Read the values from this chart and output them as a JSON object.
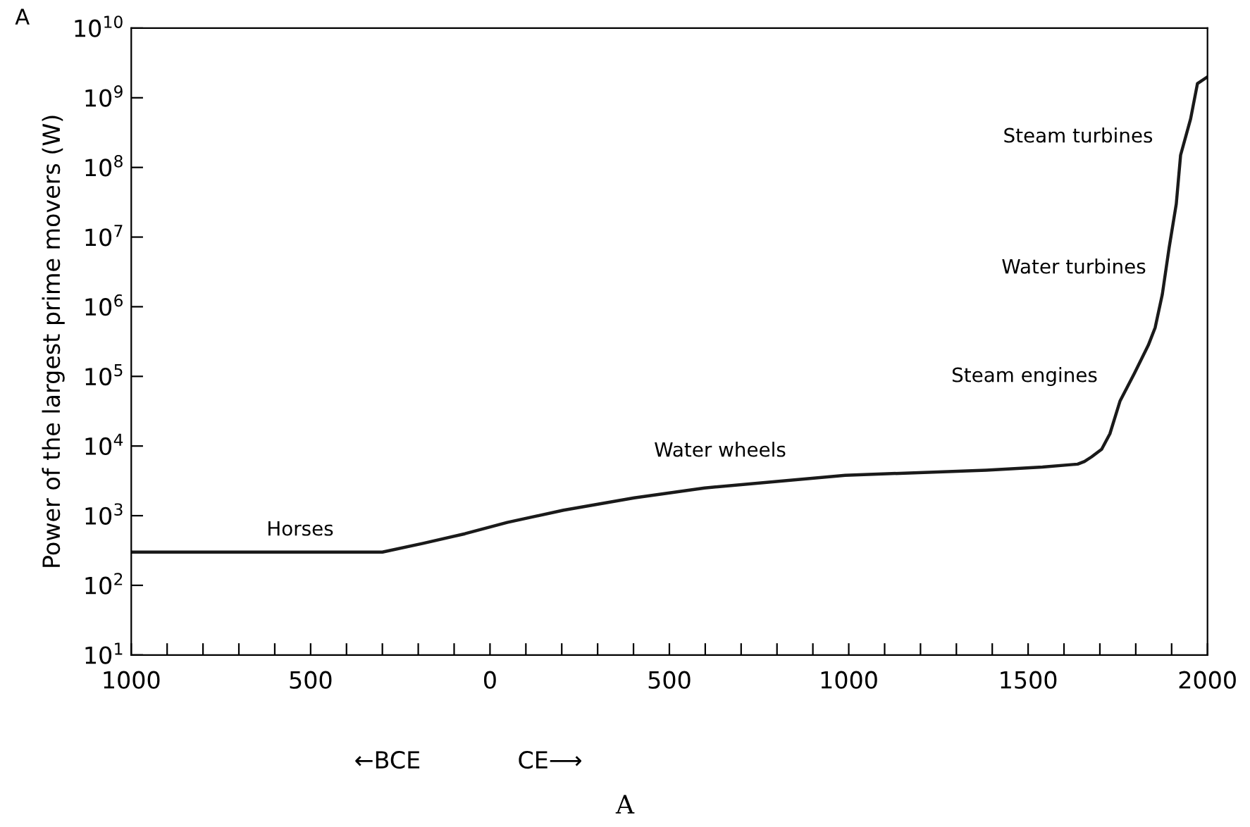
{
  "chart_data": {
    "type": "line",
    "ylabel": "Power of the largest prime movers (W)",
    "log": "y",
    "grid": false,
    "marker": "none",
    "line_style": "solid",
    "x": [
      -1000,
      -300,
      -187,
      -70,
      48,
      205,
      402,
      598,
      990,
      1383,
      1540,
      1638,
      1657,
      1677,
      1705,
      1728,
      1756,
      1796,
      1835,
      1854,
      1874,
      1893,
      1913,
      1925,
      1953,
      1972,
      2000
    ],
    "series": [
      {
        "color": "#1a1a1a",
        "values": [
          300,
          300,
          400,
          550,
          800,
          1200,
          1800,
          2500,
          3800,
          4500,
          5000,
          5500,
          6000,
          7000,
          9000,
          15000,
          44000,
          110000,
          280000,
          500000,
          1500000,
          7000000,
          30000000,
          150000000,
          500000000,
          1600000000,
          2000000000
        ]
      }
    ],
    "xlim": [
      -1000,
      2000
    ],
    "xticks": [
      {
        "value": -1000,
        "label": "1000"
      },
      {
        "value": -900,
        "label": null
      },
      {
        "value": -800,
        "label": null
      },
      {
        "value": -700,
        "label": null
      },
      {
        "value": -600,
        "label": null
      },
      {
        "value": -500,
        "label": "500"
      },
      {
        "value": -400,
        "label": null
      },
      {
        "value": -300,
        "label": null
      },
      {
        "value": -200,
        "label": null
      },
      {
        "value": -100,
        "label": null
      },
      0,
      {
        "value": 100,
        "label": null
      },
      {
        "value": 200,
        "label": null
      },
      {
        "value": 300,
        "label": null
      },
      {
        "value": 400,
        "label": null
      },
      500,
      {
        "value": 600,
        "label": null
      },
      {
        "value": 700,
        "label": null
      },
      {
        "value": 800,
        "label": null
      },
      {
        "value": 900,
        "label": null
      },
      1000,
      {
        "value": 1100,
        "label": null
      },
      {
        "value": 1200,
        "label": null
      },
      {
        "value": 1300,
        "label": null
      },
      {
        "value": 1400,
        "label": null
      },
      1500,
      {
        "value": 1600,
        "label": null
      },
      {
        "value": 1700,
        "label": null
      },
      {
        "value": 1800,
        "label": null
      },
      {
        "value": 1900,
        "label": null
      },
      2000
    ],
    "ylim": [
      10,
      10000000000
    ],
    "yticks": [
      {
        "value": 10,
        "label": "10$^{1}$"
      },
      {
        "value": 100,
        "label": "10$^{2}$"
      },
      {
        "value": 1000,
        "label": "10$^{3}$"
      },
      {
        "value": 10000,
        "label": "10$^{4}$"
      },
      {
        "value": 100000,
        "label": "10$^{5}$"
      },
      {
        "value": 1000000,
        "label": "10$^{6}$"
      },
      {
        "value": 10000000,
        "label": "10$^{7}$"
      },
      {
        "value": 100000000,
        "label": "10$^{8}$"
      },
      {
        "value": 1000000000,
        "label": "10$^{9}$"
      },
      {
        "value": 10000000000,
        "label": "10$^{10}$"
      }
    ],
    "annotations": [
      "Horses",
      "Water wheels",
      "Steam engines",
      "Water turbines",
      "Steam turbines",
      "←BCE",
      "CE⟶",
      "A",
      "A"
    ]
  }
}
